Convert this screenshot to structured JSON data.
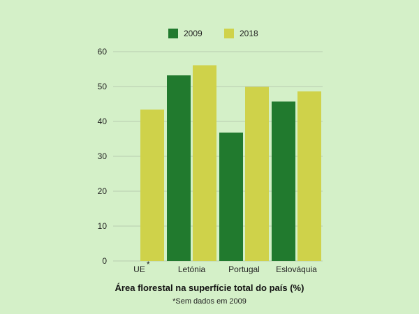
{
  "chart_data": {
    "type": "bar",
    "categories": [
      "UE",
      "Letónia",
      "Portugal",
      "Eslováquia"
    ],
    "category_marker": {
      "UE": "*"
    },
    "series": [
      {
        "name": "2009",
        "values": [
          null,
          53.2,
          36.8,
          45.7
        ],
        "color": "#217a2e"
      },
      {
        "name": "2018",
        "values": [
          43.4,
          56.1,
          49.9,
          48.6
        ],
        "color": "#cfd24a"
      }
    ],
    "xlabel": "Área florestal na superfície total do país (%)",
    "footnote": "*Sem dados em 2009",
    "ylim": [
      0,
      60
    ],
    "yticks": [
      0,
      10,
      20,
      30,
      40,
      50,
      60
    ],
    "grid": true,
    "legend_position": "top",
    "colors": {
      "background": "#d4f0c8",
      "grid": "#b7cdb0"
    }
  }
}
